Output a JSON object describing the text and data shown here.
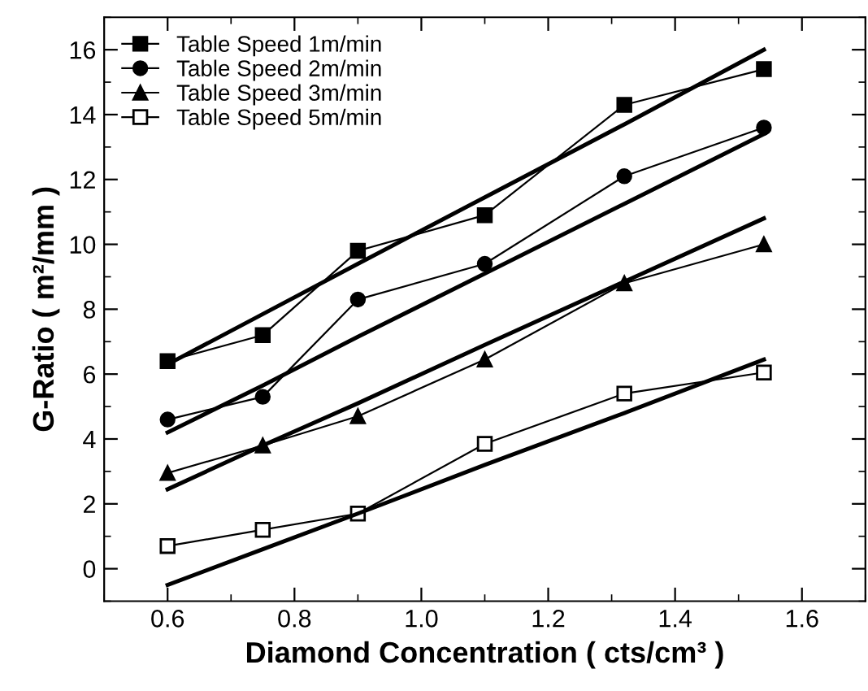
{
  "chart_data": {
    "type": "line",
    "xlabel": "Diamond Concentration ( cts/cm³ )",
    "ylabel": "G-Ratio ( m²/mm )",
    "xlim": [
      0.5,
      1.7
    ],
    "ylim": [
      -1,
      17
    ],
    "xticks": [
      {
        "value": 0.6,
        "label": "0.6"
      },
      {
        "value": 0.8,
        "label": "0.8"
      },
      {
        "value": 1.0,
        "label": "1.0"
      },
      {
        "value": 1.2,
        "label": "1.2"
      },
      {
        "value": 1.4,
        "label": "1.4"
      },
      {
        "value": 1.6,
        "label": "1.6"
      }
    ],
    "yticks": [
      0,
      2,
      4,
      6,
      8,
      10,
      12,
      14,
      16
    ],
    "x": [
      0.6,
      0.75,
      0.9,
      1.1,
      1.32,
      1.54
    ],
    "grid": false,
    "legend": "top left",
    "series": [
      {
        "name": "Table Speed 1m/min",
        "color": "#000000",
        "marker": "square",
        "values": [
          6.4,
          7.2,
          9.8,
          10.9,
          14.3,
          15.4
        ]
      },
      {
        "name": "Table Speed 2m/min",
        "color": "#000000",
        "marker": "circle",
        "values": [
          4.6,
          5.3,
          8.3,
          9.4,
          12.1,
          13.6
        ]
      },
      {
        "name": "Table Speed 3m/min",
        "color": "#000000",
        "marker": "triangle",
        "values": [
          2.95,
          3.8,
          4.7,
          6.45,
          8.8,
          10.0
        ]
      },
      {
        "name": "Table Speed 5m/min",
        "color": "#000000",
        "marker": "square",
        "colors": [
          "#ffffff",
          "#ffffff",
          "#ffffff",
          "#ffffff",
          "#ffffff",
          "#ffffff"
        ],
        "values": [
          0.7,
          1.2,
          1.7,
          3.85,
          5.4,
          6.05
        ]
      },
      {
        "color": "#000000",
        "marker": "none",
        "values": [
          6.3,
          7.85,
          9.4,
          11.45,
          13.7,
          16.0
        ]
      },
      {
        "color": "#000000",
        "marker": "none",
        "values": [
          4.2,
          5.65,
          7.15,
          9.1,
          11.25,
          13.4
        ]
      },
      {
        "color": "#000000",
        "marker": "none",
        "values": [
          2.45,
          3.8,
          5.1,
          6.9,
          8.85,
          10.8
        ]
      },
      {
        "color": "#000000",
        "marker": "none",
        "values": [
          -0.5,
          0.6,
          1.7,
          3.2,
          4.8,
          6.45
        ]
      }
    ]
  }
}
